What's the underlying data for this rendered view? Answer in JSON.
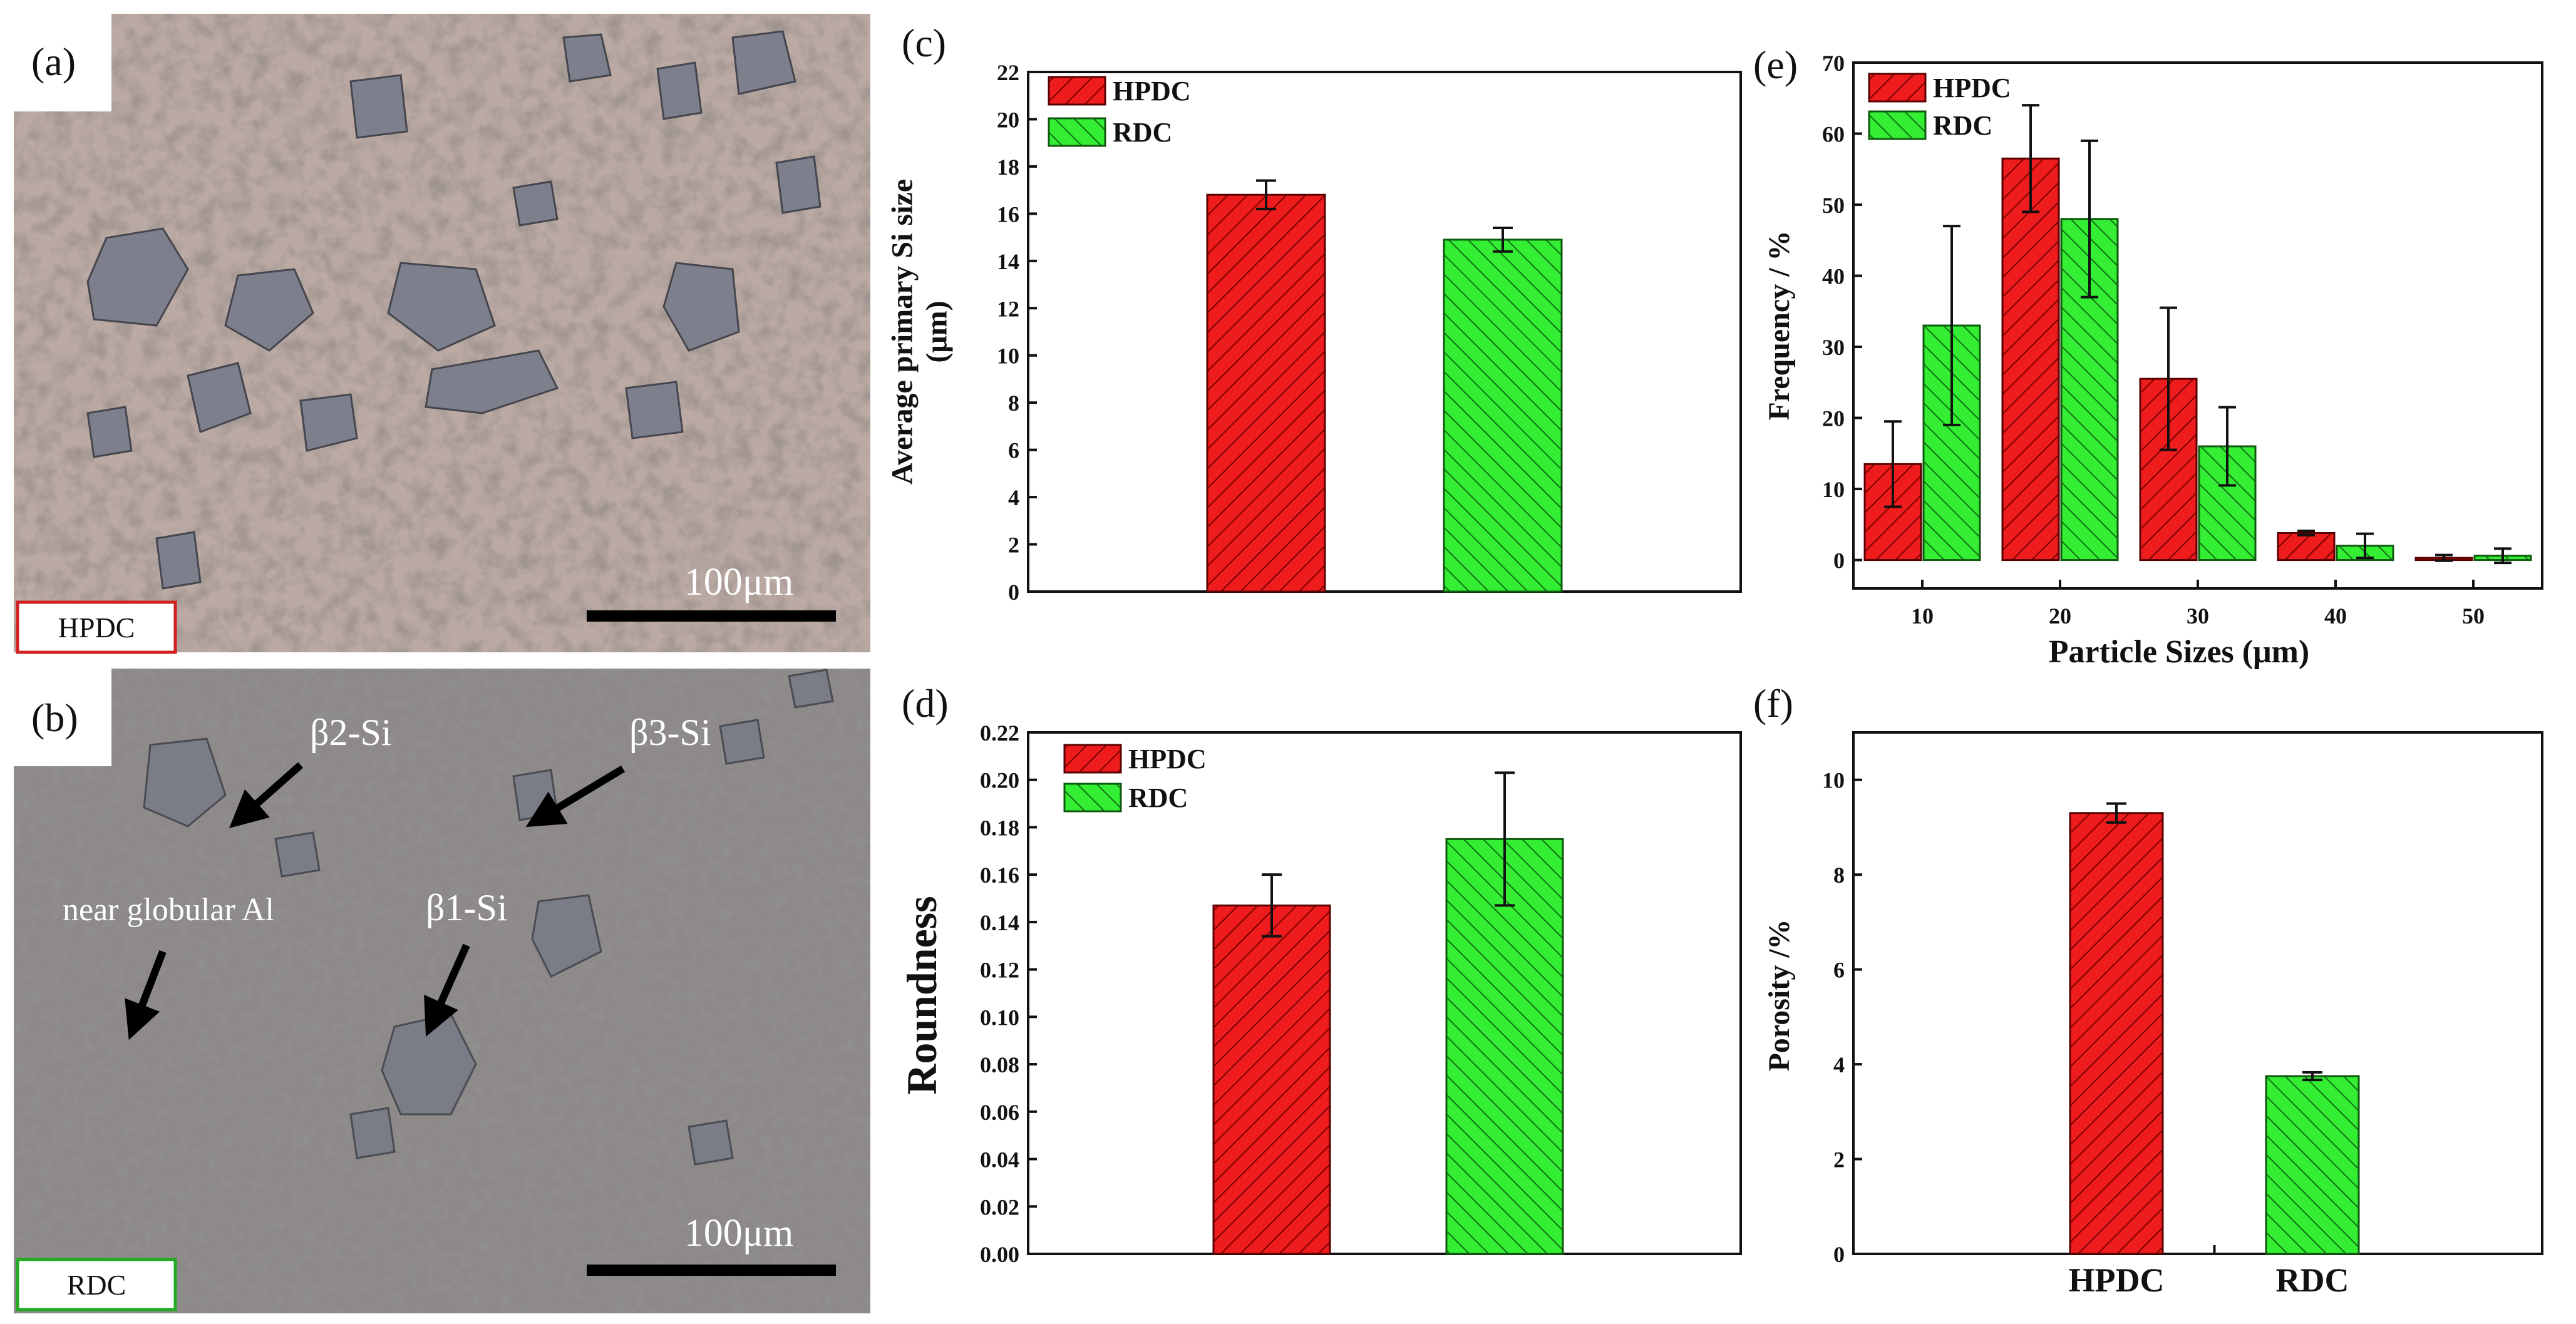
{
  "figure": {
    "colors": {
      "hpdc": "#ee1c1c",
      "rdc": "#33ee33",
      "axis": "#111111",
      "hpdc_border": "#d22020",
      "rdc_border": "#22aa22"
    },
    "micrographs": [
      {
        "label": "(a)",
        "badge": "HPDC",
        "scale_bar": "100μm",
        "background": "#b8a8a2",
        "annotations": []
      },
      {
        "label": "(b)",
        "badge": "RDC",
        "scale_bar": "100μm",
        "background": "#8e8888",
        "annotations": [
          {
            "text": "β2-Si"
          },
          {
            "text": "β3-Si"
          },
          {
            "text": "near globular Al"
          },
          {
            "text": "β1-Si"
          }
        ]
      }
    ]
  },
  "chart_data": [
    {
      "panel": "(c)",
      "type": "bar",
      "ylabel": "Average primary Si size (μm)",
      "ylabel_lines": [
        "Average primary Si size",
        "(μm)"
      ],
      "xlabel": "",
      "ylim": [
        0,
        22
      ],
      "yticks": [
        0,
        2,
        4,
        6,
        8,
        10,
        12,
        14,
        16,
        18,
        20,
        22
      ],
      "categories": [
        "HPDC",
        "RDC"
      ],
      "show_category_labels": false,
      "values": [
        16.8,
        14.9
      ],
      "errors": [
        0.6,
        0.5
      ],
      "legend": [
        "HPDC",
        "RDC"
      ]
    },
    {
      "panel": "(d)",
      "type": "bar",
      "ylabel": "Roundness",
      "xlabel": "",
      "ylim": [
        0,
        0.22
      ],
      "yticks": [
        "0.00",
        "0.02",
        "0.04",
        "0.06",
        "0.08",
        "0.10",
        "0.12",
        "0.14",
        "0.16",
        "0.18",
        "0.20",
        "0.22"
      ],
      "categories": [
        "HPDC",
        "RDC"
      ],
      "show_category_labels": false,
      "values": [
        0.147,
        0.175
      ],
      "errors": [
        0.013,
        0.028
      ],
      "legend": [
        "HPDC",
        "RDC"
      ]
    },
    {
      "panel": "(e)",
      "type": "bar",
      "ylabel": "Frequency / %",
      "xlabel": "Particle Sizes (μm)",
      "ylim": [
        -4,
        70
      ],
      "yticks": [
        0,
        10,
        20,
        30,
        40,
        50,
        60,
        70
      ],
      "categories": [
        "10",
        "20",
        "30",
        "40",
        "50"
      ],
      "series": [
        {
          "name": "HPDC",
          "values": [
            13.5,
            56.5,
            25.5,
            3.8,
            0.3
          ],
          "errors": [
            6,
            7.5,
            10,
            0.3,
            0.4
          ]
        },
        {
          "name": "RDC",
          "values": [
            33,
            48,
            16,
            2,
            0.6
          ],
          "errors": [
            14,
            11,
            5.5,
            1.7,
            1.0
          ]
        }
      ],
      "legend": [
        "HPDC",
        "RDC"
      ]
    },
    {
      "panel": "(f)",
      "type": "bar",
      "ylabel": "Porosity /%",
      "xlabel": "",
      "ylim": [
        0,
        11
      ],
      "yticks": [
        0,
        2,
        4,
        6,
        8,
        10
      ],
      "categories": [
        "HPDC",
        "RDC"
      ],
      "show_category_labels": true,
      "values": [
        9.3,
        3.75
      ],
      "errors": [
        0.2,
        0.08
      ],
      "legend": []
    }
  ]
}
